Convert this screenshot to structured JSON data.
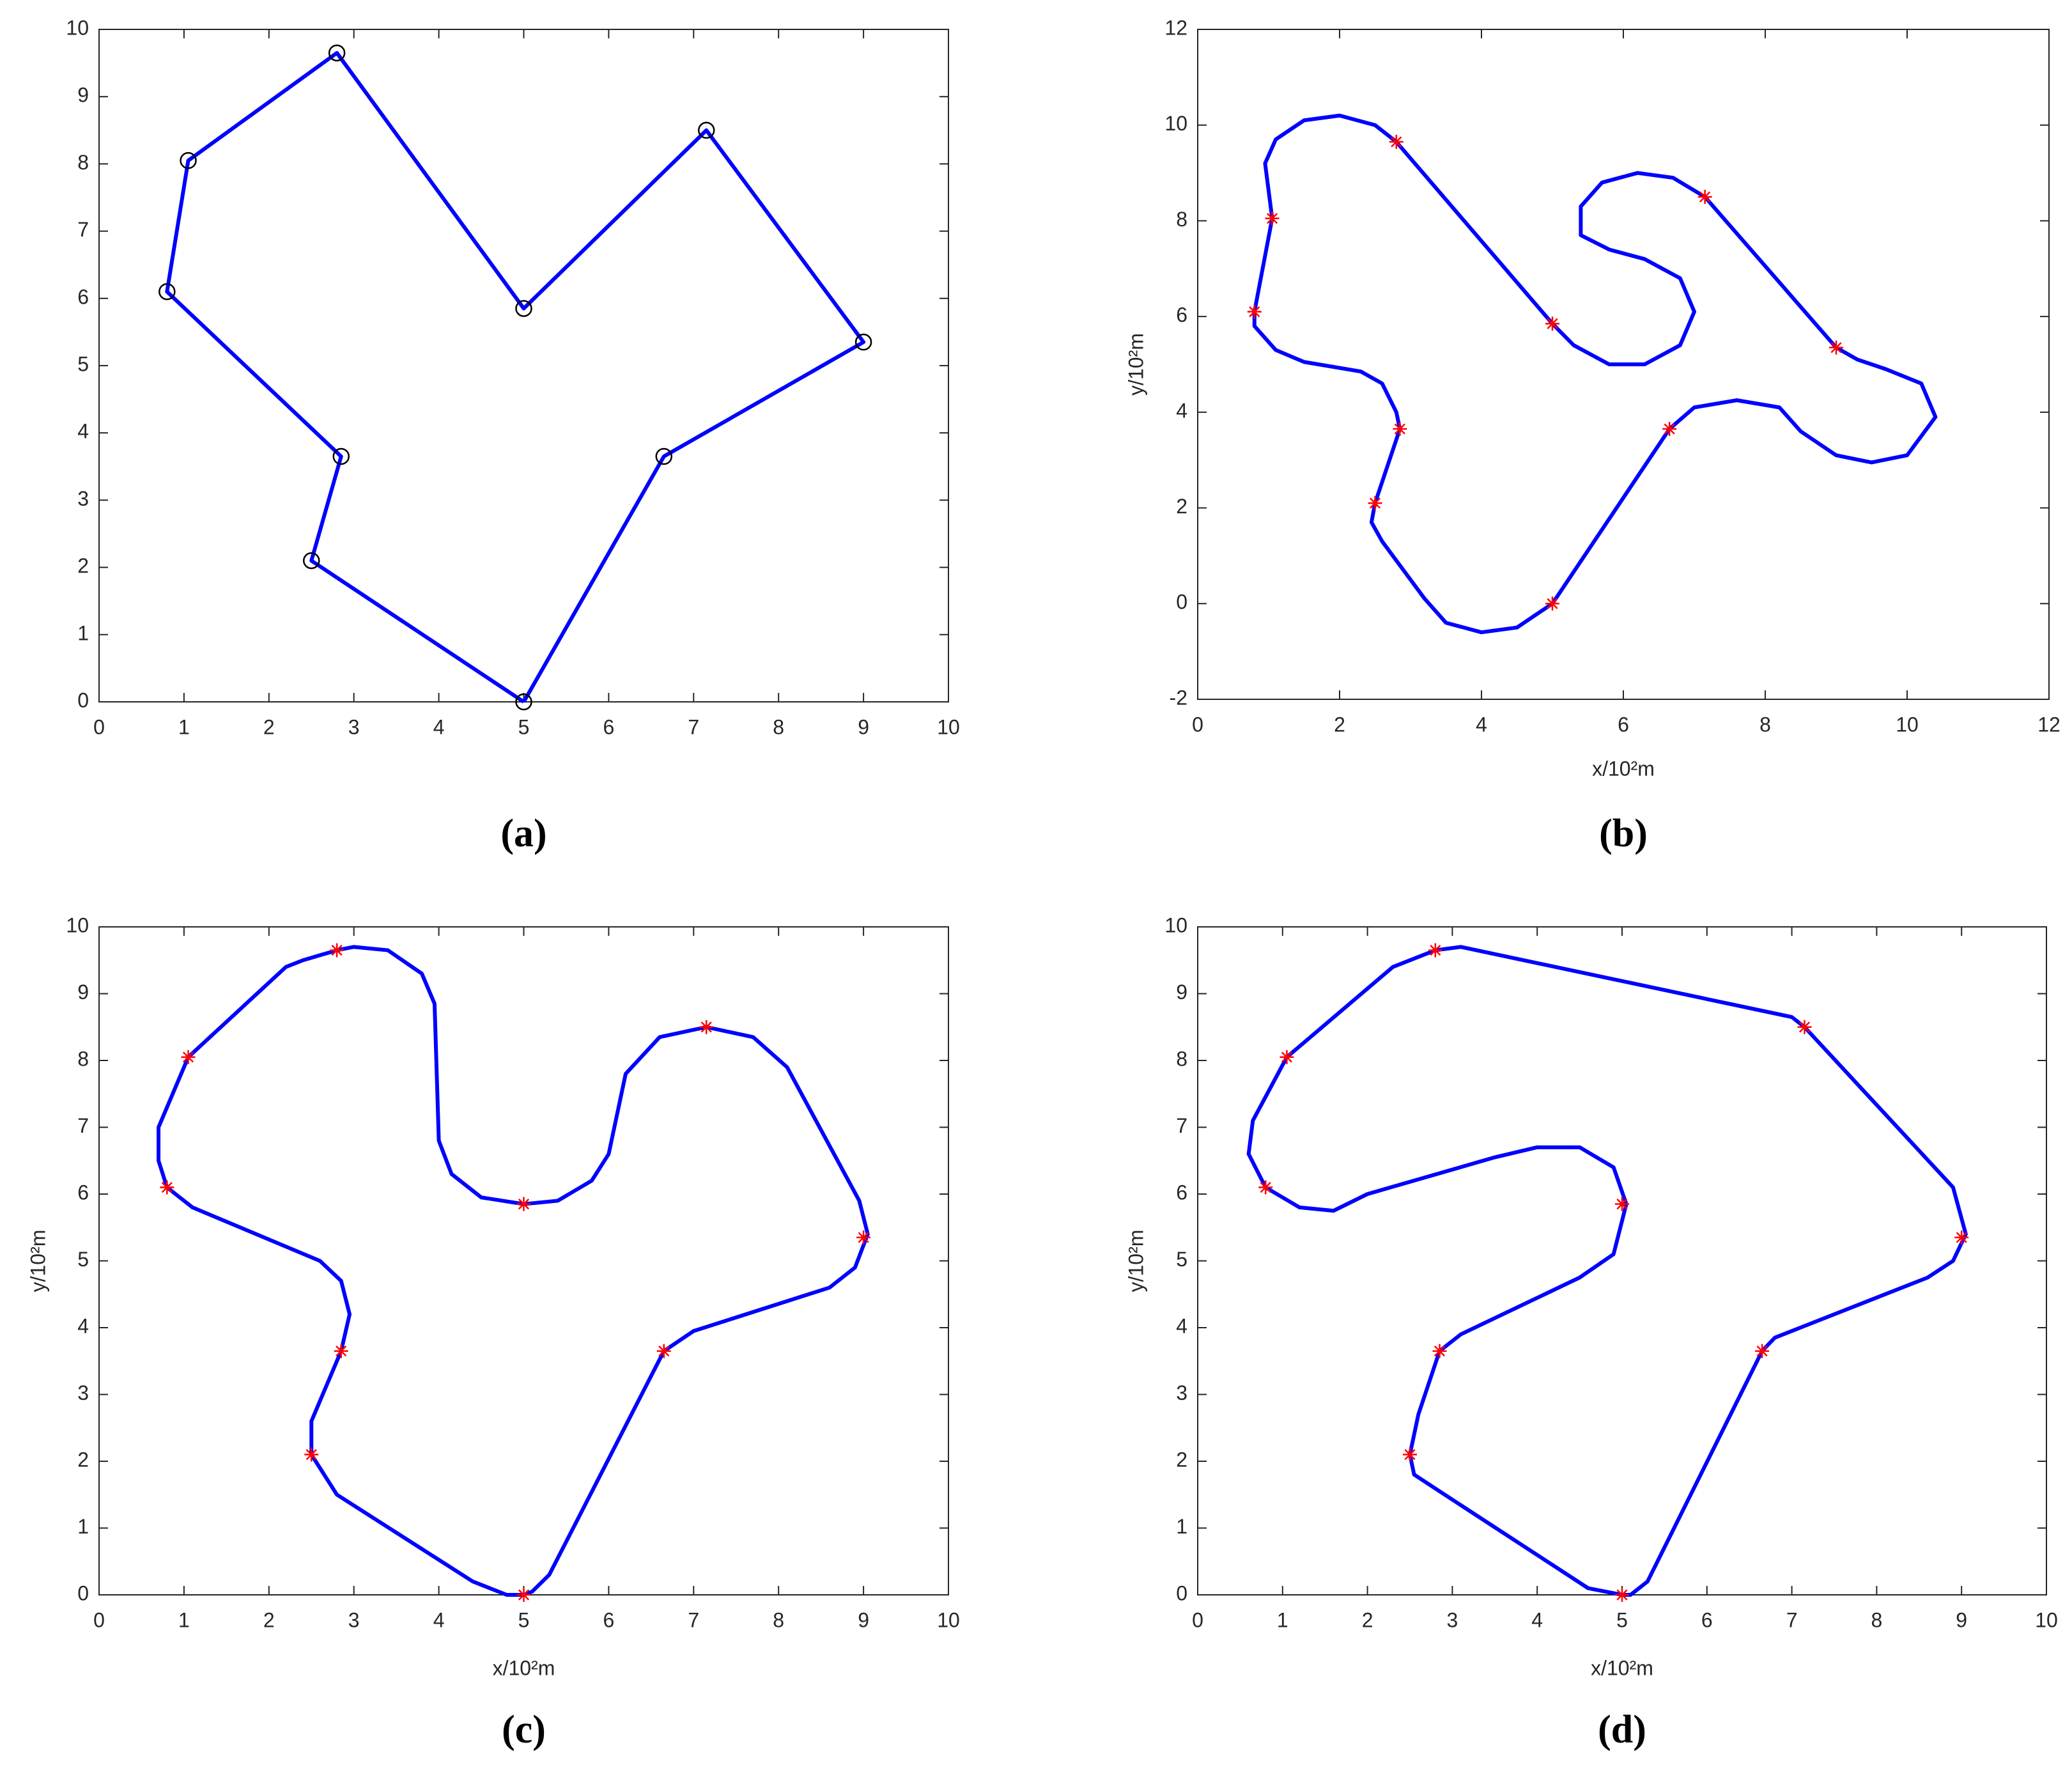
{
  "chart_data": [
    {
      "type": "line",
      "caption": "(a)",
      "xlim": [
        0,
        10
      ],
      "ylim": [
        0,
        10
      ],
      "xticks": [
        0,
        1,
        2,
        3,
        4,
        5,
        6,
        7,
        8,
        9,
        10
      ],
      "yticks": [
        0,
        1,
        2,
        3,
        4,
        5,
        6,
        7,
        8,
        9,
        10
      ],
      "series": [
        {
          "color": "#0000ff",
          "x": [
            5,
            2.5,
            2.85,
            0.8,
            1.05,
            2.8,
            5,
            7.15,
            9,
            6.65,
            5
          ],
          "values": [
            0,
            2.1,
            3.65,
            6.1,
            8.05,
            9.65,
            5.85,
            8.5,
            5.35,
            3.65,
            0
          ]
        },
        {
          "color": "#000000",
          "marker": "circle",
          "x": [
            5,
            2.5,
            2.85,
            0.8,
            1.05,
            2.8,
            5,
            7.15,
            9,
            6.65
          ],
          "values": [
            0,
            2.1,
            3.65,
            6.1,
            8.05,
            9.65,
            5.85,
            8.5,
            5.35,
            3.65
          ]
        }
      ]
    },
    {
      "type": "line",
      "caption": "(b)",
      "xlabel": "x/10²m",
      "ylabel": "y/10²m",
      "xlim": [
        0,
        12
      ],
      "ylim": [
        -2,
        12
      ],
      "xticks": [
        0,
        2,
        4,
        6,
        8,
        10,
        12
      ],
      "yticks": [
        -2,
        0,
        2,
        4,
        6,
        8,
        10,
        12
      ],
      "series": [
        {
          "color": "#0000ff",
          "x": [
            5,
            6.65,
            7,
            7.6,
            8.2,
            8.5,
            9,
            9.5,
            10,
            10.4,
            10.2,
            9.7,
            9.3,
            9,
            7.15,
            6.7,
            6.2,
            5.7,
            5.4,
            5.4,
            5.8,
            6.3,
            6.8,
            7,
            6.8,
            6.3,
            5.8,
            5.3,
            5,
            2.8,
            2.5,
            2,
            1.5,
            1.1,
            0.95,
            1.05,
            0.8,
            0.8,
            1.1,
            1.5,
            2.3,
            2.6,
            2.8,
            2.85,
            2.5,
            2.45,
            2.6,
            3.2,
            3.5,
            4,
            4.5,
            5
          ],
          "values": [
            0,
            3.65,
            4.1,
            4.25,
            4.1,
            3.6,
            3.1,
            2.95,
            3.1,
            3.9,
            4.6,
            4.9,
            5.1,
            5.35,
            8.5,
            8.9,
            9,
            8.8,
            8.3,
            7.7,
            7.4,
            7.2,
            6.8,
            6.1,
            5.4,
            5,
            5,
            5.4,
            5.85,
            9.65,
            10,
            10.2,
            10.1,
            9.7,
            9.2,
            8.05,
            6.1,
            5.8,
            5.3,
            5.05,
            4.85,
            4.6,
            4,
            3.65,
            2.1,
            1.7,
            1.3,
            0.1,
            -0.4,
            -0.6,
            -0.5,
            0
          ]
        },
        {
          "color": "#ff0000",
          "marker": "star",
          "x": [
            5,
            2.5,
            2.85,
            0.8,
            1.05,
            2.8,
            5,
            7.15,
            9,
            6.65
          ],
          "values": [
            0,
            2.1,
            3.65,
            6.1,
            8.05,
            9.65,
            5.85,
            8.5,
            5.35,
            3.65
          ]
        }
      ]
    },
    {
      "type": "line",
      "caption": "(c)",
      "xlabel": "x/10²m",
      "ylabel": "y/10²m",
      "xlim": [
        0,
        10
      ],
      "ylim": [
        0,
        10
      ],
      "xticks": [
        0,
        1,
        2,
        3,
        4,
        5,
        6,
        7,
        8,
        9,
        10
      ],
      "yticks": [
        0,
        1,
        2,
        3,
        4,
        5,
        6,
        7,
        8,
        9,
        10
      ],
      "series": [
        {
          "color": "#0000ff",
          "x": [
            5,
            5.1,
            5.3,
            6.65,
            7,
            8.6,
            8.9,
            9.05,
            8.95,
            8.1,
            7.7,
            7.15,
            6.6,
            6.2,
            6,
            5.8,
            5.4,
            5,
            4.5,
            4.15,
            4,
            3.95,
            3.8,
            3.4,
            3,
            2.8,
            2.4,
            2.2,
            1.05,
            0.7,
            0.7,
            0.8,
            1.1,
            2.6,
            2.85,
            2.95,
            2.85,
            2.5,
            2.5,
            2.8,
            4.4,
            4.8,
            5
          ],
          "values": [
            0,
            0.05,
            0.3,
            3.65,
            3.95,
            4.6,
            4.9,
            5.4,
            5.9,
            7.9,
            8.35,
            8.5,
            8.35,
            7.8,
            6.6,
            6.2,
            5.9,
            5.85,
            5.95,
            6.3,
            6.8,
            8.85,
            9.3,
            9.65,
            9.7,
            9.65,
            9.5,
            9.4,
            8.05,
            7,
            6.5,
            6.1,
            5.8,
            5,
            4.7,
            4.2,
            3.65,
            2.6,
            2.1,
            1.5,
            0.2,
            0,
            0
          ]
        },
        {
          "color": "#ff0000",
          "marker": "star",
          "x": [
            5,
            2.5,
            2.85,
            0.8,
            1.05,
            2.8,
            5,
            7.15,
            9,
            6.65
          ],
          "values": [
            0,
            2.1,
            3.65,
            6.1,
            8.05,
            9.65,
            5.85,
            8.5,
            5.35,
            3.65
          ]
        }
      ]
    },
    {
      "type": "line",
      "caption": "(d)",
      "xlabel": "x/10²m",
      "ylabel": "y/10²m",
      "xlim": [
        0,
        10
      ],
      "ylim": [
        0,
        10
      ],
      "xticks": [
        0,
        1,
        2,
        3,
        4,
        5,
        6,
        7,
        8,
        9,
        10
      ],
      "yticks": [
        0,
        1,
        2,
        3,
        4,
        5,
        6,
        7,
        8,
        9,
        10
      ],
      "series": [
        {
          "color": "#0000ff",
          "x": [
            5,
            4.6,
            2.85,
            2.55,
            2.5,
            2.6,
            2.85,
            3.1,
            4.5,
            4.9,
            5.05,
            4.9,
            4.5,
            4,
            3.5,
            2,
            1.6,
            1.2,
            0.8,
            0.6,
            0.65,
            1.05,
            2.3,
            2.8,
            3.1,
            7,
            7.15,
            8.9,
            9.05,
            8.9,
            8.6,
            7.1,
            6.8,
            6.65,
            5.3,
            5.1,
            5
          ],
          "values": [
            0,
            0.1,
            1.55,
            1.8,
            2.1,
            2.7,
            3.65,
            3.9,
            4.75,
            5.1,
            5.85,
            6.4,
            6.7,
            6.7,
            6.55,
            6,
            5.75,
            5.8,
            6.1,
            6.6,
            7.1,
            8.05,
            9.4,
            9.65,
            9.7,
            8.65,
            8.5,
            6.1,
            5.4,
            5,
            4.75,
            4,
            3.85,
            3.65,
            0.2,
            0,
            0
          ]
        },
        {
          "color": "#ff0000",
          "marker": "star",
          "x": [
            5,
            2.5,
            2.85,
            0.8,
            1.05,
            2.8,
            5,
            7.15,
            9,
            6.65
          ],
          "values": [
            0,
            2.1,
            3.65,
            6.1,
            8.05,
            9.65,
            5.85,
            8.5,
            5.35,
            3.65
          ]
        }
      ]
    }
  ]
}
